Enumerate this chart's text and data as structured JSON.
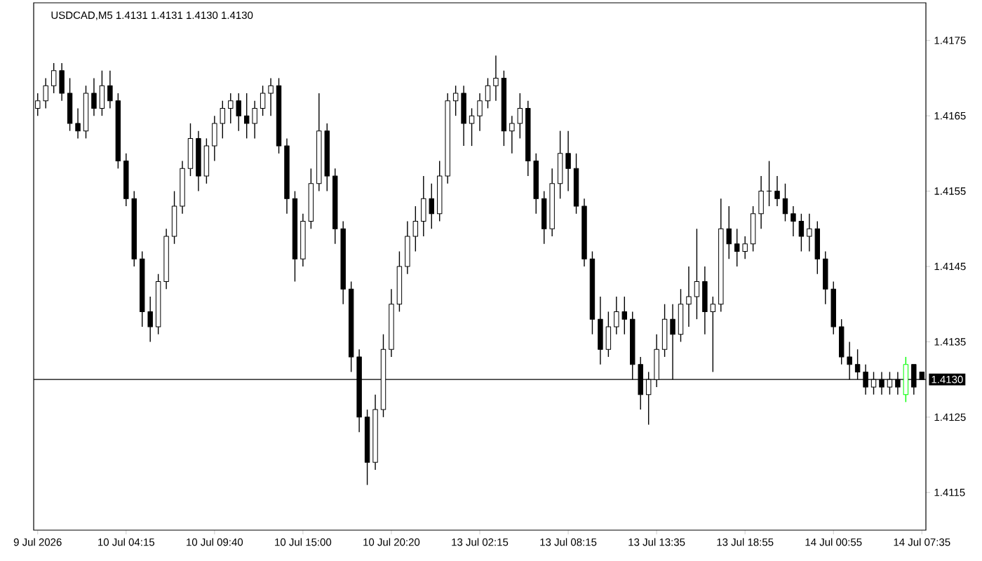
{
  "chart_data": {
    "type": "candlestick",
    "title": "USDCAD,M5  1.4131 1.4131 1.4130 1.4130",
    "categories": [
      "9 Jul 2026",
      null,
      null,
      null,
      null,
      null,
      null,
      null,
      null,
      null,
      null,
      "10 Jul 04:15",
      null,
      null,
      null,
      null,
      null,
      null,
      null,
      null,
      null,
      null,
      "10 Jul 09:40",
      null,
      null,
      null,
      null,
      null,
      null,
      null,
      null,
      null,
      null,
      "10 Jul 15:00",
      null,
      null,
      null,
      null,
      null,
      null,
      null,
      null,
      null,
      null,
      "10 Jul 20:20",
      null,
      null,
      null,
      null,
      null,
      null,
      null,
      null,
      null,
      null,
      "13 Jul 02:15",
      null,
      null,
      null,
      null,
      null,
      null,
      null,
      null,
      null,
      null,
      "13 Jul 08:15",
      null,
      null,
      null,
      null,
      null,
      null,
      null,
      null,
      null,
      null,
      "13 Jul 13:35",
      null,
      null,
      null,
      null,
      null,
      null,
      null,
      null,
      null,
      null,
      "13 Jul 18:55",
      null,
      null,
      null,
      null,
      null,
      null,
      null,
      null,
      null,
      null,
      "14 Jul 00:55",
      null,
      null,
      null,
      null,
      null,
      null,
      null,
      null,
      null,
      null,
      "14 Jul 07:35"
    ],
    "ohlc": [
      [
        1.4166,
        1.4168,
        1.4165,
        1.4167
      ],
      [
        1.4167,
        1.417,
        1.4166,
        1.4169
      ],
      [
        1.4169,
        1.4172,
        1.4168,
        1.4171
      ],
      [
        1.4171,
        1.4172,
        1.4167,
        1.4168
      ],
      [
        1.4168,
        1.417,
        1.4163,
        1.4164
      ],
      [
        1.4164,
        1.4166,
        1.4162,
        1.4163
      ],
      [
        1.4163,
        1.4169,
        1.4162,
        1.4168
      ],
      [
        1.4168,
        1.417,
        1.4165,
        1.4166
      ],
      [
        1.4166,
        1.4171,
        1.4165,
        1.4169
      ],
      [
        1.4169,
        1.4171,
        1.4166,
        1.4167
      ],
      [
        1.4167,
        1.4168,
        1.4158,
        1.4159
      ],
      [
        1.4159,
        1.416,
        1.4153,
        1.4154
      ],
      [
        1.4154,
        1.4155,
        1.4145,
        1.4146
      ],
      [
        1.4146,
        1.4147,
        1.4137,
        1.4139
      ],
      [
        1.4139,
        1.4141,
        1.4135,
        1.4137
      ],
      [
        1.4137,
        1.4144,
        1.4136,
        1.4143
      ],
      [
        1.4143,
        1.415,
        1.4142,
        1.4149
      ],
      [
        1.4149,
        1.4155,
        1.4148,
        1.4153
      ],
      [
        1.4153,
        1.4159,
        1.4152,
        1.4158
      ],
      [
        1.4158,
        1.4164,
        1.4157,
        1.4162
      ],
      [
        1.4162,
        1.4163,
        1.4155,
        1.4157
      ],
      [
        1.4157,
        1.4162,
        1.4156,
        1.4161
      ],
      [
        1.4161,
        1.4165,
        1.4159,
        1.4164
      ],
      [
        1.4164,
        1.4167,
        1.4162,
        1.4166
      ],
      [
        1.4166,
        1.4168,
        1.4164,
        1.4167
      ],
      [
        1.4167,
        1.4168,
        1.4163,
        1.4165
      ],
      [
        1.4165,
        1.4168,
        1.4162,
        1.4164
      ],
      [
        1.4164,
        1.4167,
        1.4162,
        1.4166
      ],
      [
        1.4166,
        1.4169,
        1.4165,
        1.4168
      ],
      [
        1.4168,
        1.417,
        1.4165,
        1.4169
      ],
      [
        1.4169,
        1.417,
        1.416,
        1.4161
      ],
      [
        1.4161,
        1.4162,
        1.4152,
        1.4154
      ],
      [
        1.4154,
        1.4155,
        1.4143,
        1.4146
      ],
      [
        1.4146,
        1.4152,
        1.4145,
        1.4151
      ],
      [
        1.4151,
        1.4158,
        1.415,
        1.4156
      ],
      [
        1.4156,
        1.4168,
        1.4155,
        1.4163
      ],
      [
        1.4163,
        1.4164,
        1.4155,
        1.4157
      ],
      [
        1.4157,
        1.4158,
        1.4148,
        1.415
      ],
      [
        1.415,
        1.4151,
        1.414,
        1.4142
      ],
      [
        1.4142,
        1.4143,
        1.4131,
        1.4133
      ],
      [
        1.4133,
        1.4134,
        1.4123,
        1.4125
      ],
      [
        1.4125,
        1.4126,
        1.4116,
        1.4119
      ],
      [
        1.4119,
        1.4128,
        1.4118,
        1.4126
      ],
      [
        1.4126,
        1.4136,
        1.4125,
        1.4134
      ],
      [
        1.4134,
        1.4142,
        1.4133,
        1.414
      ],
      [
        1.414,
        1.4147,
        1.4139,
        1.4145
      ],
      [
        1.4145,
        1.4151,
        1.4144,
        1.4149
      ],
      [
        1.4149,
        1.4153,
        1.4147,
        1.4151
      ],
      [
        1.4151,
        1.4157,
        1.4149,
        1.4154
      ],
      [
        1.4154,
        1.4156,
        1.415,
        1.4152
      ],
      [
        1.4152,
        1.4159,
        1.4151,
        1.4157
      ],
      [
        1.4157,
        1.4168,
        1.4156,
        1.4167
      ],
      [
        1.4167,
        1.4169,
        1.4165,
        1.4168
      ],
      [
        1.4168,
        1.4169,
        1.4161,
        1.4164
      ],
      [
        1.4164,
        1.4166,
        1.4161,
        1.4165
      ],
      [
        1.4165,
        1.4168,
        1.4163,
        1.4167
      ],
      [
        1.4167,
        1.417,
        1.4166,
        1.4169
      ],
      [
        1.4169,
        1.4173,
        1.4167,
        1.417
      ],
      [
        1.417,
        1.4171,
        1.4161,
        1.4163
      ],
      [
        1.4163,
        1.4165,
        1.416,
        1.4164
      ],
      [
        1.4164,
        1.4168,
        1.4162,
        1.4166
      ],
      [
        1.4166,
        1.4167,
        1.4157,
        1.4159
      ],
      [
        1.4159,
        1.416,
        1.4152,
        1.4154
      ],
      [
        1.4154,
        1.4155,
        1.4148,
        1.415
      ],
      [
        1.415,
        1.4158,
        1.4149,
        1.4156
      ],
      [
        1.4156,
        1.4163,
        1.4154,
        1.416
      ],
      [
        1.416,
        1.4163,
        1.4155,
        1.4158
      ],
      [
        1.4158,
        1.416,
        1.4152,
        1.4153
      ],
      [
        1.4153,
        1.4154,
        1.4145,
        1.4146
      ],
      [
        1.4146,
        1.4147,
        1.4136,
        1.4138
      ],
      [
        1.4138,
        1.4141,
        1.4132,
        1.4134
      ],
      [
        1.4134,
        1.4139,
        1.4133,
        1.4137
      ],
      [
        1.4137,
        1.4141,
        1.4136,
        1.4139
      ],
      [
        1.4139,
        1.4141,
        1.4136,
        1.4138
      ],
      [
        1.4138,
        1.4139,
        1.413,
        1.4132
      ],
      [
        1.4132,
        1.4133,
        1.4126,
        1.4128
      ],
      [
        1.4128,
        1.4131,
        1.4124,
        1.413
      ],
      [
        1.413,
        1.4136,
        1.4129,
        1.4134
      ],
      [
        1.4134,
        1.414,
        1.4133,
        1.4138
      ],
      [
        1.4138,
        1.414,
        1.413,
        1.4136
      ],
      [
        1.4136,
        1.4142,
        1.4135,
        1.414
      ],
      [
        1.414,
        1.4145,
        1.4137,
        1.4141
      ],
      [
        1.4141,
        1.415,
        1.4138,
        1.4143
      ],
      [
        1.4143,
        1.4145,
        1.4136,
        1.4139
      ],
      [
        1.4139,
        1.4141,
        1.4131,
        1.414
      ],
      [
        1.414,
        1.4154,
        1.4139,
        1.415
      ],
      [
        1.415,
        1.4153,
        1.4146,
        1.4148
      ],
      [
        1.4148,
        1.415,
        1.4145,
        1.4147
      ],
      [
        1.4147,
        1.4149,
        1.4146,
        1.4148
      ],
      [
        1.4148,
        1.4153,
        1.4147,
        1.4152
      ],
      [
        1.4152,
        1.4157,
        1.415,
        1.4155
      ],
      [
        1.4155,
        1.4159,
        1.4153,
        1.4155
      ],
      [
        1.4155,
        1.4157,
        1.4153,
        1.4154
      ],
      [
        1.4154,
        1.4156,
        1.4151,
        1.4152
      ],
      [
        1.4152,
        1.4153,
        1.4149,
        1.4151
      ],
      [
        1.4151,
        1.4152,
        1.4147,
        1.4149
      ],
      [
        1.4149,
        1.4152,
        1.4147,
        1.415
      ],
      [
        1.415,
        1.4151,
        1.4144,
        1.4146
      ],
      [
        1.4146,
        1.4147,
        1.414,
        1.4142
      ],
      [
        1.4142,
        1.4143,
        1.4136,
        1.4137
      ],
      [
        1.4137,
        1.4138,
        1.4132,
        1.4133
      ],
      [
        1.4133,
        1.4135,
        1.413,
        1.4132
      ],
      [
        1.4132,
        1.4134,
        1.413,
        1.4131
      ],
      [
        1.4131,
        1.4132,
        1.4128,
        1.4129
      ],
      [
        1.4129,
        1.4131,
        1.4128,
        1.413
      ],
      [
        1.413,
        1.4131,
        1.4128,
        1.4129
      ],
      [
        1.4129,
        1.4131,
        1.4128,
        1.413
      ],
      [
        1.413,
        1.4131,
        1.4128,
        1.4129
      ],
      [
        1.4128,
        1.4133,
        1.4127,
        1.4132
      ],
      [
        1.4132,
        1.4132,
        1.4128,
        1.4129
      ],
      [
        1.4131,
        1.4131,
        1.413,
        1.413
      ]
    ],
    "colors": [
      "#000000",
      "#000000",
      "#000000",
      "#000000",
      "#000000",
      "#000000",
      "#000000",
      "#000000",
      "#000000",
      "#000000",
      "#000000",
      "#000000",
      "#000000",
      "#000000",
      "#000000",
      "#000000",
      "#000000",
      "#000000",
      "#000000",
      "#000000",
      "#000000",
      "#000000",
      "#000000",
      "#000000",
      "#000000",
      "#000000",
      "#000000",
      "#000000",
      "#000000",
      "#000000",
      "#000000",
      "#000000",
      "#000000",
      "#000000",
      "#000000",
      "#000000",
      "#000000",
      "#000000",
      "#000000",
      "#000000",
      "#000000",
      "#000000",
      "#000000",
      "#000000",
      "#000000",
      "#000000",
      "#000000",
      "#000000",
      "#000000",
      "#000000",
      "#000000",
      "#000000",
      "#000000",
      "#000000",
      "#000000",
      "#000000",
      "#000000",
      "#000000",
      "#000000",
      "#000000",
      "#000000",
      "#000000",
      "#000000",
      "#000000",
      "#000000",
      "#000000",
      "#000000",
      "#000000",
      "#000000",
      "#000000",
      "#000000",
      "#000000",
      "#000000",
      "#000000",
      "#000000",
      "#000000",
      "#000000",
      "#000000",
      "#000000",
      "#000000",
      "#000000",
      "#000000",
      "#000000",
      "#000000",
      "#000000",
      "#000000",
      "#000000",
      "#000000",
      "#000000",
      "#000000",
      "#000000",
      "#000000",
      "#000000",
      "#000000",
      "#000000",
      "#000000",
      "#000000",
      "#000000",
      "#000000",
      "#000000",
      "#000000",
      "#000000",
      "#000000",
      "#000000",
      "#000000",
      "#000000",
      "#000000",
      "#000000",
      "#00ff00",
      "#000000",
      "#000000"
    ],
    "ylim": [
      1.411,
      1.418
    ],
    "yticks": [
      1.4115,
      1.4125,
      1.4135,
      1.4145,
      1.4155,
      1.4165,
      1.4175
    ],
    "ref_lines": [
      {
        "axis": "y",
        "value": 1.413,
        "label": "1.4130",
        "color": "#000000"
      }
    ]
  }
}
